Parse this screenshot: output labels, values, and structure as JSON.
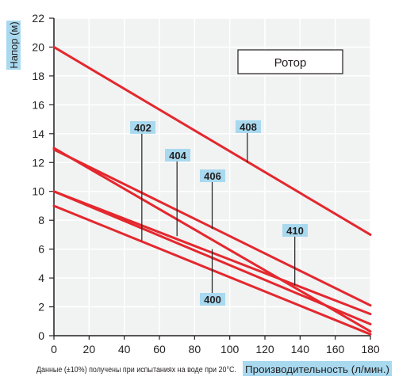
{
  "chart_data": {
    "type": "line",
    "ylabel": "Напор (м)",
    "xlabel": "Производительность (л/мин.)",
    "footnote": "Данные (±10%) получены при испытаниях на воде при 20°C.",
    "legend_title": "Ротор",
    "xlim": [
      0,
      180
    ],
    "ylim": [
      0,
      22
    ],
    "x_ticks": [
      0,
      20,
      40,
      60,
      80,
      100,
      120,
      140,
      160,
      180
    ],
    "y_ticks": [
      0,
      2,
      4,
      6,
      8,
      10,
      12,
      14,
      16,
      18,
      20,
      22
    ],
    "grid": true,
    "line_color": "#e3282e",
    "label_fill": "#a8d9ef",
    "plot_bg": "#f1f2f2",
    "series": [
      {
        "name": "400",
        "x": [
          0,
          180
        ],
        "y": [
          9.0,
          0.1
        ],
        "label_at": [
          90,
          6.0
        ]
      },
      {
        "name": "402",
        "x": [
          0,
          180
        ],
        "y": [
          10.0,
          0.8
        ],
        "label_at": [
          50,
          6.6
        ]
      },
      {
        "name": "404",
        "x": [
          0,
          180
        ],
        "y": [
          13.0,
          0.3
        ],
        "label_at": [
          70,
          6.9
        ]
      },
      {
        "name": "406",
        "x": [
          0,
          180
        ],
        "y": [
          10.0,
          1.5
        ],
        "label_at": [
          90,
          7.4
        ]
      },
      {
        "name": "408",
        "x": [
          0,
          180
        ],
        "y": [
          20.0,
          7.0
        ],
        "label_at": [
          110,
          12.0
        ]
      },
      {
        "name": "410",
        "x": [
          0,
          180
        ],
        "y": [
          12.9,
          2.1
        ],
        "label_at": [
          137,
          3.5
        ]
      }
    ]
  }
}
